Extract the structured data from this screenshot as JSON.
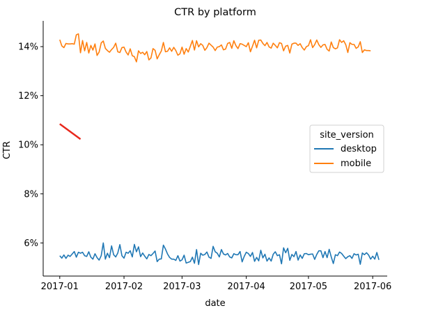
{
  "chart_data": {
    "type": "line",
    "title": "CTR by platform",
    "xlabel": "date",
    "ylabel": "CTR",
    "x_start": "2017-01-01",
    "x_end": "2017-05-31",
    "xlim": [
      "2016-12-24",
      "2017-06-08"
    ],
    "ylim": [
      0.0465,
      0.1505
    ],
    "x_ticks": [
      {
        "date": "2017-01-01",
        "label": "2017-01"
      },
      {
        "date": "2017-02-01",
        "label": "2017-02"
      },
      {
        "date": "2017-03-01",
        "label": "2017-03"
      },
      {
        "date": "2017-04-01",
        "label": "2017-04"
      },
      {
        "date": "2017-05-01",
        "label": "2017-05"
      },
      {
        "date": "2017-06-01",
        "label": "2017-06"
      }
    ],
    "y_ticks": [
      {
        "value": 0.06,
        "label": "6%"
      },
      {
        "value": 0.08,
        "label": "8%"
      },
      {
        "value": 0.1,
        "label": "10%"
      },
      {
        "value": 0.12,
        "label": "12%"
      },
      {
        "value": 0.14,
        "label": "14%"
      }
    ],
    "grid": false,
    "legend": {
      "title": "site_version",
      "placement": "center-right"
    },
    "series": [
      {
        "name": "desktop",
        "color": "#1f77b4",
        "values": [
          0.0548,
          0.0538,
          0.0551,
          0.0537,
          0.055,
          0.0545,
          0.0555,
          0.0565,
          0.0542,
          0.0562,
          0.0558,
          0.0562,
          0.0548,
          0.0545,
          0.0564,
          0.0542,
          0.0534,
          0.0556,
          0.054,
          0.053,
          0.0548,
          0.06,
          0.0534,
          0.0558,
          0.054,
          0.0588,
          0.0552,
          0.0543,
          0.0559,
          0.0593,
          0.0548,
          0.0538,
          0.0562,
          0.0558,
          0.0568,
          0.0543,
          0.0594,
          0.0564,
          0.0584,
          0.0544,
          0.0559,
          0.0546,
          0.0535,
          0.0553,
          0.0548,
          0.0557,
          0.0567,
          0.0524,
          0.0534,
          0.0535,
          0.0591,
          0.0575,
          0.0555,
          0.0541,
          0.0534,
          0.0534,
          0.0529,
          0.0548,
          0.0526,
          0.0531,
          0.055,
          0.0518,
          0.0521,
          0.0524,
          0.0542,
          0.0517,
          0.0573,
          0.0512,
          0.0558,
          0.055,
          0.0553,
          0.0563,
          0.0542,
          0.0537,
          0.0586,
          0.0564,
          0.0558,
          0.0543,
          0.0573,
          0.0555,
          0.0551,
          0.0557,
          0.0543,
          0.0539,
          0.0556,
          0.0552,
          0.0552,
          0.0565,
          0.0523,
          0.0545,
          0.0562,
          0.0557,
          0.0545,
          0.0561,
          0.0525,
          0.0541,
          0.0527,
          0.057,
          0.0539,
          0.0554,
          0.0526,
          0.0539,
          0.0526,
          0.0554,
          0.0564,
          0.0548,
          0.0552,
          0.0515,
          0.058,
          0.056,
          0.0578,
          0.0529,
          0.0553,
          0.0544,
          0.0565,
          0.053,
          0.0551,
          0.0537,
          0.0556,
          0.0557,
          0.0552,
          0.0554,
          0.0555,
          0.0533,
          0.0553,
          0.0568,
          0.0568,
          0.054,
          0.0565,
          0.054,
          0.0574,
          0.0543,
          0.0516,
          0.0552,
          0.0548,
          0.0563,
          0.0557,
          0.0546,
          0.0536,
          0.0544,
          0.0548,
          0.0537,
          0.0556,
          0.0551,
          0.0554,
          0.0513,
          0.0559,
          0.0552,
          0.056,
          0.0551,
          0.0534,
          0.0546,
          0.0534,
          0.0561,
          0.0531
        ]
      },
      {
        "name": "mobile",
        "color": "#ff7f0e",
        "values": [
          0.1428,
          0.1403,
          0.1396,
          0.1413,
          0.1411,
          0.1411,
          0.1412,
          0.141,
          0.1448,
          0.1452,
          0.1375,
          0.1425,
          0.1383,
          0.1417,
          0.1374,
          0.1405,
          0.1386,
          0.1411,
          0.1364,
          0.1378,
          0.1415,
          0.1423,
          0.1393,
          0.1384,
          0.1377,
          0.1388,
          0.1397,
          0.1414,
          0.1379,
          0.1376,
          0.1396,
          0.1398,
          0.1378,
          0.1366,
          0.1391,
          0.1363,
          0.1359,
          0.1338,
          0.1383,
          0.1372,
          0.1377,
          0.1367,
          0.138,
          0.1346,
          0.1354,
          0.1392,
          0.1385,
          0.135,
          0.1367,
          0.1382,
          0.1417,
          0.1379,
          0.1381,
          0.1395,
          0.1381,
          0.1397,
          0.1384,
          0.1365,
          0.1371,
          0.1398,
          0.1369,
          0.1392,
          0.1378,
          0.1401,
          0.1425,
          0.1386,
          0.1424,
          0.1399,
          0.1412,
          0.1405,
          0.1385,
          0.1396,
          0.1414,
          0.1406,
          0.1398,
          0.1384,
          0.1398,
          0.14,
          0.1407,
          0.1387,
          0.139,
          0.1413,
          0.1417,
          0.1393,
          0.1424,
          0.1404,
          0.1392,
          0.1412,
          0.141,
          0.1405,
          0.14,
          0.1416,
          0.1379,
          0.1402,
          0.1426,
          0.1395,
          0.1426,
          0.1427,
          0.1413,
          0.1404,
          0.1417,
          0.1399,
          0.1394,
          0.1414,
          0.1405,
          0.1395,
          0.1416,
          0.1413,
          0.1383,
          0.1402,
          0.1405,
          0.1374,
          0.141,
          0.1414,
          0.1414,
          0.1405,
          0.1412,
          0.1396,
          0.1386,
          0.14,
          0.1404,
          0.1428,
          0.1396,
          0.1408,
          0.1427,
          0.1408,
          0.1397,
          0.1407,
          0.1409,
          0.1389,
          0.1382,
          0.1419,
          0.1396,
          0.1391,
          0.1395,
          0.1428,
          0.1417,
          0.1424,
          0.1408,
          0.1376,
          0.1416,
          0.1409,
          0.1409,
          0.1393,
          0.1399,
          0.142,
          0.1376,
          0.1387,
          0.1384,
          0.1384,
          0.1383
        ]
      },
      {
        "name": "",
        "color": "#e8281c",
        "x": [
          "2017-01-01",
          "2017-01-11"
        ],
        "values": [
          0.1085,
          0.1023
        ]
      }
    ]
  }
}
